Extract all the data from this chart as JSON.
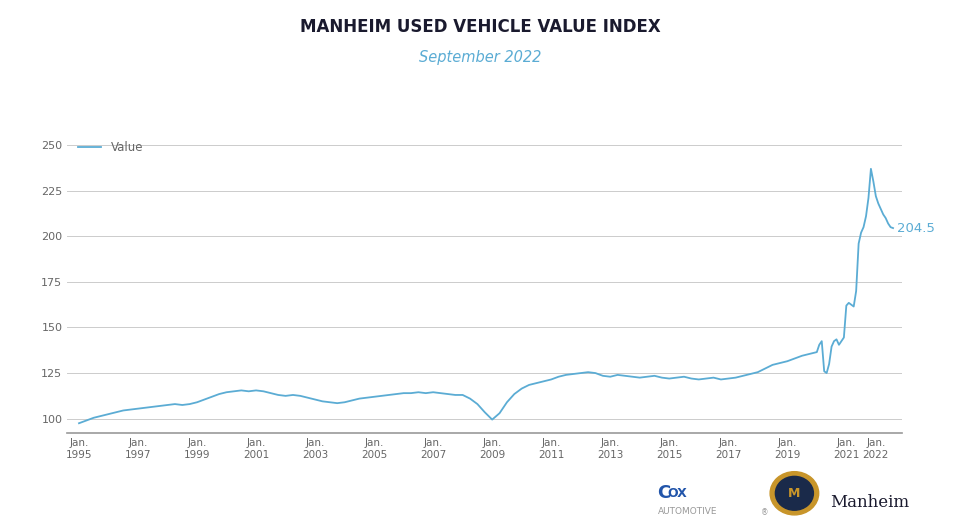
{
  "title": "MANHEIM USED VEHICLE VALUE INDEX",
  "subtitle": "September 2022",
  "legend_label": "Value",
  "line_color": "#5bacd4",
  "final_label": "204.5",
  "title_color": "#222244",
  "subtitle_color": "#5bacd4",
  "bg_color": "#ffffff",
  "yticks": [
    100,
    125,
    150,
    175,
    200,
    225,
    250
  ],
  "xtick_years": [
    1995,
    1997,
    1999,
    2001,
    2003,
    2005,
    2007,
    2009,
    2011,
    2013,
    2015,
    2017,
    2019,
    2021,
    2022
  ],
  "data": [
    [
      1995.0,
      97.5
    ],
    [
      1995.25,
      99.0
    ],
    [
      1995.5,
      100.5
    ],
    [
      1995.75,
      101.5
    ],
    [
      1996.0,
      102.5
    ],
    [
      1996.25,
      103.5
    ],
    [
      1996.5,
      104.5
    ],
    [
      1996.75,
      105.0
    ],
    [
      1997.0,
      105.5
    ],
    [
      1997.25,
      106.0
    ],
    [
      1997.5,
      106.5
    ],
    [
      1997.75,
      107.0
    ],
    [
      1998.0,
      107.5
    ],
    [
      1998.25,
      108.0
    ],
    [
      1998.5,
      107.5
    ],
    [
      1998.75,
      108.0
    ],
    [
      1999.0,
      109.0
    ],
    [
      1999.25,
      110.5
    ],
    [
      1999.5,
      112.0
    ],
    [
      1999.75,
      113.5
    ],
    [
      2000.0,
      114.5
    ],
    [
      2000.25,
      115.0
    ],
    [
      2000.5,
      115.5
    ],
    [
      2000.75,
      115.0
    ],
    [
      2001.0,
      115.5
    ],
    [
      2001.25,
      115.0
    ],
    [
      2001.5,
      114.0
    ],
    [
      2001.75,
      113.0
    ],
    [
      2002.0,
      112.5
    ],
    [
      2002.25,
      113.0
    ],
    [
      2002.5,
      112.5
    ],
    [
      2002.75,
      111.5
    ],
    [
      2003.0,
      110.5
    ],
    [
      2003.25,
      109.5
    ],
    [
      2003.5,
      109.0
    ],
    [
      2003.75,
      108.5
    ],
    [
      2004.0,
      109.0
    ],
    [
      2004.25,
      110.0
    ],
    [
      2004.5,
      111.0
    ],
    [
      2004.75,
      111.5
    ],
    [
      2005.0,
      112.0
    ],
    [
      2005.25,
      112.5
    ],
    [
      2005.5,
      113.0
    ],
    [
      2005.75,
      113.5
    ],
    [
      2006.0,
      114.0
    ],
    [
      2006.25,
      114.0
    ],
    [
      2006.5,
      114.5
    ],
    [
      2006.75,
      114.0
    ],
    [
      2007.0,
      114.5
    ],
    [
      2007.25,
      114.0
    ],
    [
      2007.5,
      113.5
    ],
    [
      2007.75,
      113.0
    ],
    [
      2008.0,
      113.0
    ],
    [
      2008.25,
      111.0
    ],
    [
      2008.5,
      108.0
    ],
    [
      2008.75,
      103.5
    ],
    [
      2009.0,
      99.5
    ],
    [
      2009.25,
      103.0
    ],
    [
      2009.5,
      109.0
    ],
    [
      2009.75,
      113.5
    ],
    [
      2010.0,
      116.5
    ],
    [
      2010.25,
      118.5
    ],
    [
      2010.5,
      119.5
    ],
    [
      2010.75,
      120.5
    ],
    [
      2011.0,
      121.5
    ],
    [
      2011.25,
      123.0
    ],
    [
      2011.5,
      124.0
    ],
    [
      2011.75,
      124.5
    ],
    [
      2012.0,
      125.0
    ],
    [
      2012.25,
      125.5
    ],
    [
      2012.5,
      125.0
    ],
    [
      2012.75,
      123.5
    ],
    [
      2013.0,
      123.0
    ],
    [
      2013.25,
      124.0
    ],
    [
      2013.5,
      123.5
    ],
    [
      2013.75,
      123.0
    ],
    [
      2014.0,
      122.5
    ],
    [
      2014.25,
      123.0
    ],
    [
      2014.5,
      123.5
    ],
    [
      2014.75,
      122.5
    ],
    [
      2015.0,
      122.0
    ],
    [
      2015.25,
      122.5
    ],
    [
      2015.5,
      123.0
    ],
    [
      2015.75,
      122.0
    ],
    [
      2016.0,
      121.5
    ],
    [
      2016.25,
      122.0
    ],
    [
      2016.5,
      122.5
    ],
    [
      2016.75,
      121.5
    ],
    [
      2017.0,
      122.0
    ],
    [
      2017.25,
      122.5
    ],
    [
      2017.5,
      123.5
    ],
    [
      2017.75,
      124.5
    ],
    [
      2018.0,
      125.5
    ],
    [
      2018.25,
      127.5
    ],
    [
      2018.5,
      129.5
    ],
    [
      2018.75,
      130.5
    ],
    [
      2019.0,
      131.5
    ],
    [
      2019.25,
      133.0
    ],
    [
      2019.5,
      134.5
    ],
    [
      2019.75,
      135.5
    ],
    [
      2020.0,
      136.5
    ],
    [
      2020.083,
      140.5
    ],
    [
      2020.167,
      142.5
    ],
    [
      2020.25,
      126.0
    ],
    [
      2020.333,
      125.0
    ],
    [
      2020.417,
      130.0
    ],
    [
      2020.5,
      139.5
    ],
    [
      2020.583,
      142.5
    ],
    [
      2020.667,
      143.5
    ],
    [
      2020.75,
      140.5
    ],
    [
      2020.833,
      142.5
    ],
    [
      2020.917,
      144.5
    ],
    [
      2021.0,
      162.0
    ],
    [
      2021.083,
      163.5
    ],
    [
      2021.167,
      162.5
    ],
    [
      2021.25,
      161.5
    ],
    [
      2021.333,
      170.0
    ],
    [
      2021.417,
      196.0
    ],
    [
      2021.5,
      202.0
    ],
    [
      2021.583,
      205.0
    ],
    [
      2021.667,
      211.0
    ],
    [
      2021.75,
      221.0
    ],
    [
      2021.833,
      237.0
    ],
    [
      2021.917,
      230.0
    ],
    [
      2022.0,
      222.0
    ],
    [
      2022.083,
      218.0
    ],
    [
      2022.167,
      215.0
    ],
    [
      2022.25,
      212.0
    ],
    [
      2022.333,
      210.0
    ],
    [
      2022.417,
      207.0
    ],
    [
      2022.5,
      205.0
    ],
    [
      2022.583,
      204.5
    ]
  ]
}
